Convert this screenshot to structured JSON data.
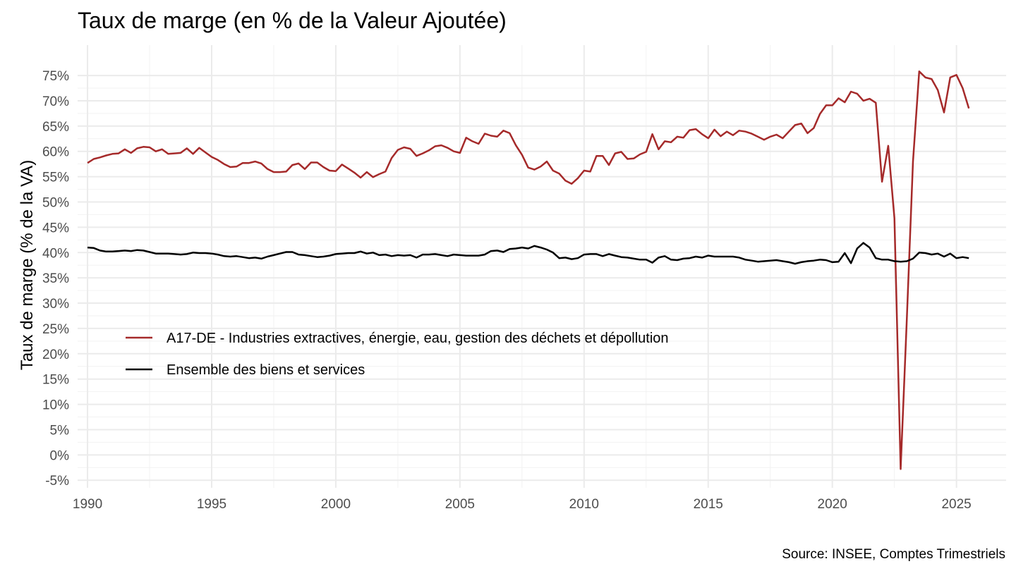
{
  "chart_data": {
    "type": "line",
    "title": "Taux de marge (en % de la Valeur Ajoutée)",
    "xlabel": "",
    "ylabel": "Taux de marge (% de la VA)",
    "caption": "Source: INSEE, Comptes Trimestriels",
    "xlim": [
      1989.6,
      2027.0
    ],
    "ylim": [
      -6.5,
      81
    ],
    "x_ticks": [
      1990,
      1995,
      2000,
      2005,
      2010,
      2015,
      2020,
      2025
    ],
    "y_ticks": [
      -5,
      0,
      5,
      10,
      15,
      20,
      25,
      30,
      35,
      40,
      45,
      50,
      55,
      60,
      65,
      70,
      75
    ],
    "y_tick_labels": [
      "-5%",
      "0%",
      "5%",
      "10%",
      "15%",
      "20%",
      "25%",
      "30%",
      "35%",
      "40%",
      "45%",
      "50%",
      "55%",
      "60%",
      "65%",
      "70%",
      "75%"
    ],
    "grid": true,
    "legend_position": "inside-bottom-left",
    "series": [
      {
        "name": "A17-DE - Industries extractives, énergie, eau, gestion des déchets et dépollution",
        "color": "#a52a2a",
        "points": [
          [
            1990.0,
            57.7
          ],
          [
            1990.25,
            58.5
          ],
          [
            1990.5,
            58.8
          ],
          [
            1990.75,
            59.2
          ],
          [
            1991.0,
            59.5
          ],
          [
            1991.25,
            59.6
          ],
          [
            1991.5,
            60.4
          ],
          [
            1991.75,
            59.7
          ],
          [
            1992.0,
            60.6
          ],
          [
            1992.25,
            60.9
          ],
          [
            1992.5,
            60.8
          ],
          [
            1992.75,
            60.0
          ],
          [
            1993.0,
            60.4
          ],
          [
            1993.25,
            59.5
          ],
          [
            1993.5,
            59.6
          ],
          [
            1993.75,
            59.7
          ],
          [
            1994.0,
            60.6
          ],
          [
            1994.25,
            59.5
          ],
          [
            1994.5,
            60.7
          ],
          [
            1994.75,
            59.8
          ],
          [
            1995.0,
            58.9
          ],
          [
            1995.25,
            58.3
          ],
          [
            1995.5,
            57.5
          ],
          [
            1995.75,
            56.9
          ],
          [
            1996.0,
            57.0
          ],
          [
            1996.25,
            57.7
          ],
          [
            1996.5,
            57.7
          ],
          [
            1996.75,
            58.0
          ],
          [
            1997.0,
            57.6
          ],
          [
            1997.25,
            56.5
          ],
          [
            1997.5,
            55.9
          ],
          [
            1997.75,
            55.9
          ],
          [
            1998.0,
            56.0
          ],
          [
            1998.25,
            57.3
          ],
          [
            1998.5,
            57.6
          ],
          [
            1998.75,
            56.5
          ],
          [
            1999.0,
            57.8
          ],
          [
            1999.25,
            57.8
          ],
          [
            1999.5,
            56.9
          ],
          [
            1999.75,
            56.2
          ],
          [
            2000.0,
            56.1
          ],
          [
            2000.25,
            57.4
          ],
          [
            2000.5,
            56.6
          ],
          [
            2000.75,
            55.8
          ],
          [
            2001.0,
            54.8
          ],
          [
            2001.25,
            55.9
          ],
          [
            2001.5,
            54.9
          ],
          [
            2001.75,
            55.5
          ],
          [
            2002.0,
            56.0
          ],
          [
            2002.25,
            58.7
          ],
          [
            2002.5,
            60.3
          ],
          [
            2002.75,
            60.8
          ],
          [
            2003.0,
            60.5
          ],
          [
            2003.25,
            59.1
          ],
          [
            2003.5,
            59.6
          ],
          [
            2003.75,
            60.2
          ],
          [
            2004.0,
            61.0
          ],
          [
            2004.25,
            61.2
          ],
          [
            2004.5,
            60.7
          ],
          [
            2004.75,
            60.0
          ],
          [
            2005.0,
            59.7
          ],
          [
            2005.25,
            62.7
          ],
          [
            2005.5,
            62.0
          ],
          [
            2005.75,
            61.5
          ],
          [
            2006.0,
            63.5
          ],
          [
            2006.25,
            63.1
          ],
          [
            2006.5,
            62.9
          ],
          [
            2006.75,
            64.1
          ],
          [
            2007.0,
            63.6
          ],
          [
            2007.25,
            61.2
          ],
          [
            2007.5,
            59.3
          ],
          [
            2007.75,
            56.8
          ],
          [
            2008.0,
            56.4
          ],
          [
            2008.25,
            57.0
          ],
          [
            2008.5,
            58.0
          ],
          [
            2008.75,
            56.2
          ],
          [
            2009.0,
            55.6
          ],
          [
            2009.25,
            54.2
          ],
          [
            2009.5,
            53.6
          ],
          [
            2009.75,
            54.7
          ],
          [
            2010.0,
            56.2
          ],
          [
            2010.25,
            56.0
          ],
          [
            2010.5,
            59.1
          ],
          [
            2010.75,
            59.1
          ],
          [
            2011.0,
            57.3
          ],
          [
            2011.25,
            59.6
          ],
          [
            2011.5,
            59.9
          ],
          [
            2011.75,
            58.5
          ],
          [
            2012.0,
            58.6
          ],
          [
            2012.25,
            59.4
          ],
          [
            2012.5,
            59.9
          ],
          [
            2012.75,
            63.4
          ],
          [
            2013.0,
            60.4
          ],
          [
            2013.25,
            62.0
          ],
          [
            2013.5,
            61.8
          ],
          [
            2013.75,
            62.9
          ],
          [
            2014.0,
            62.7
          ],
          [
            2014.25,
            64.2
          ],
          [
            2014.5,
            64.4
          ],
          [
            2014.75,
            63.4
          ],
          [
            2015.0,
            62.6
          ],
          [
            2015.25,
            64.3
          ],
          [
            2015.5,
            63.0
          ],
          [
            2015.75,
            63.9
          ],
          [
            2016.0,
            63.2
          ],
          [
            2016.25,
            64.1
          ],
          [
            2016.5,
            63.9
          ],
          [
            2016.75,
            63.5
          ],
          [
            2017.0,
            62.9
          ],
          [
            2017.25,
            62.3
          ],
          [
            2017.5,
            62.9
          ],
          [
            2017.75,
            63.3
          ],
          [
            2018.0,
            62.6
          ],
          [
            2018.25,
            63.9
          ],
          [
            2018.5,
            65.2
          ],
          [
            2018.75,
            65.5
          ],
          [
            2019.0,
            63.6
          ],
          [
            2019.25,
            64.6
          ],
          [
            2019.5,
            67.4
          ],
          [
            2019.75,
            69.1
          ],
          [
            2020.0,
            69.1
          ],
          [
            2020.25,
            70.5
          ],
          [
            2020.5,
            69.7
          ],
          [
            2020.75,
            71.8
          ],
          [
            2021.0,
            71.4
          ],
          [
            2021.25,
            70.0
          ],
          [
            2021.5,
            70.4
          ],
          [
            2021.75,
            69.6
          ],
          [
            2022.0,
            54.0
          ],
          [
            2022.25,
            61.1
          ],
          [
            2022.5,
            46.8
          ],
          [
            2022.75,
            -2.8
          ],
          [
            2023.0,
            27.0
          ],
          [
            2023.25,
            58.0
          ],
          [
            2023.5,
            75.8
          ],
          [
            2023.75,
            74.6
          ],
          [
            2024.0,
            74.3
          ],
          [
            2024.25,
            72.1
          ],
          [
            2024.5,
            67.7
          ],
          [
            2024.75,
            74.6
          ],
          [
            2025.0,
            75.1
          ],
          [
            2025.25,
            72.5
          ],
          [
            2025.5,
            68.5
          ]
        ]
      },
      {
        "name": "Ensemble des biens et services",
        "color": "#000000",
        "points": [
          [
            1990.0,
            41.0
          ],
          [
            1990.25,
            40.9
          ],
          [
            1990.5,
            40.4
          ],
          [
            1990.75,
            40.2
          ],
          [
            1991.0,
            40.2
          ],
          [
            1991.25,
            40.3
          ],
          [
            1991.5,
            40.4
          ],
          [
            1991.75,
            40.3
          ],
          [
            1992.0,
            40.5
          ],
          [
            1992.25,
            40.4
          ],
          [
            1992.5,
            40.1
          ],
          [
            1992.75,
            39.8
          ],
          [
            1993.0,
            39.8
          ],
          [
            1993.25,
            39.8
          ],
          [
            1993.5,
            39.7
          ],
          [
            1993.75,
            39.6
          ],
          [
            1994.0,
            39.7
          ],
          [
            1994.25,
            40.0
          ],
          [
            1994.5,
            39.9
          ],
          [
            1994.75,
            39.9
          ],
          [
            1995.0,
            39.8
          ],
          [
            1995.25,
            39.6
          ],
          [
            1995.5,
            39.3
          ],
          [
            1995.75,
            39.2
          ],
          [
            1996.0,
            39.3
          ],
          [
            1996.25,
            39.1
          ],
          [
            1996.5,
            38.9
          ],
          [
            1996.75,
            39.0
          ],
          [
            1997.0,
            38.8
          ],
          [
            1997.25,
            39.2
          ],
          [
            1997.5,
            39.5
          ],
          [
            1997.75,
            39.8
          ],
          [
            1998.0,
            40.1
          ],
          [
            1998.25,
            40.1
          ],
          [
            1998.5,
            39.6
          ],
          [
            1998.75,
            39.5
          ],
          [
            1999.0,
            39.3
          ],
          [
            1999.25,
            39.1
          ],
          [
            1999.5,
            39.2
          ],
          [
            1999.75,
            39.4
          ],
          [
            2000.0,
            39.7
          ],
          [
            2000.25,
            39.8
          ],
          [
            2000.5,
            39.9
          ],
          [
            2000.75,
            39.9
          ],
          [
            2001.0,
            40.2
          ],
          [
            2001.25,
            39.8
          ],
          [
            2001.5,
            40.0
          ],
          [
            2001.75,
            39.5
          ],
          [
            2002.0,
            39.6
          ],
          [
            2002.25,
            39.3
          ],
          [
            2002.5,
            39.5
          ],
          [
            2002.75,
            39.4
          ],
          [
            2003.0,
            39.5
          ],
          [
            2003.25,
            39.0
          ],
          [
            2003.5,
            39.6
          ],
          [
            2003.75,
            39.6
          ],
          [
            2004.0,
            39.7
          ],
          [
            2004.25,
            39.5
          ],
          [
            2004.5,
            39.3
          ],
          [
            2004.75,
            39.6
          ],
          [
            2005.0,
            39.5
          ],
          [
            2005.25,
            39.4
          ],
          [
            2005.5,
            39.4
          ],
          [
            2005.75,
            39.4
          ],
          [
            2006.0,
            39.6
          ],
          [
            2006.25,
            40.3
          ],
          [
            2006.5,
            40.4
          ],
          [
            2006.75,
            40.1
          ],
          [
            2007.0,
            40.7
          ],
          [
            2007.25,
            40.8
          ],
          [
            2007.5,
            41.0
          ],
          [
            2007.75,
            40.8
          ],
          [
            2008.0,
            41.3
          ],
          [
            2008.25,
            41.0
          ],
          [
            2008.5,
            40.6
          ],
          [
            2008.75,
            40.0
          ],
          [
            2009.0,
            38.9
          ],
          [
            2009.25,
            39.0
          ],
          [
            2009.5,
            38.7
          ],
          [
            2009.75,
            38.9
          ],
          [
            2010.0,
            39.6
          ],
          [
            2010.25,
            39.7
          ],
          [
            2010.5,
            39.7
          ],
          [
            2010.75,
            39.3
          ],
          [
            2011.0,
            39.7
          ],
          [
            2011.25,
            39.4
          ],
          [
            2011.5,
            39.1
          ],
          [
            2011.75,
            39.0
          ],
          [
            2012.0,
            38.8
          ],
          [
            2012.25,
            38.6
          ],
          [
            2012.5,
            38.6
          ],
          [
            2012.75,
            38.0
          ],
          [
            2013.0,
            39.0
          ],
          [
            2013.25,
            39.3
          ],
          [
            2013.5,
            38.6
          ],
          [
            2013.75,
            38.5
          ],
          [
            2014.0,
            38.8
          ],
          [
            2014.25,
            38.9
          ],
          [
            2014.5,
            39.2
          ],
          [
            2014.75,
            39.0
          ],
          [
            2015.0,
            39.4
          ],
          [
            2015.25,
            39.2
          ],
          [
            2015.5,
            39.2
          ],
          [
            2015.75,
            39.2
          ],
          [
            2016.0,
            39.2
          ],
          [
            2016.25,
            39.0
          ],
          [
            2016.5,
            38.6
          ],
          [
            2016.75,
            38.4
          ],
          [
            2017.0,
            38.2
          ],
          [
            2017.25,
            38.3
          ],
          [
            2017.5,
            38.4
          ],
          [
            2017.75,
            38.5
          ],
          [
            2018.0,
            38.3
          ],
          [
            2018.25,
            38.1
          ],
          [
            2018.5,
            37.8
          ],
          [
            2018.75,
            38.1
          ],
          [
            2019.0,
            38.3
          ],
          [
            2019.25,
            38.4
          ],
          [
            2019.5,
            38.6
          ],
          [
            2019.75,
            38.5
          ],
          [
            2020.0,
            38.1
          ],
          [
            2020.25,
            38.2
          ],
          [
            2020.5,
            39.9
          ],
          [
            2020.75,
            37.9
          ],
          [
            2021.0,
            40.8
          ],
          [
            2021.25,
            41.9
          ],
          [
            2021.5,
            41.0
          ],
          [
            2021.75,
            38.9
          ],
          [
            2022.0,
            38.6
          ],
          [
            2022.25,
            38.6
          ],
          [
            2022.5,
            38.3
          ],
          [
            2022.75,
            38.2
          ],
          [
            2023.0,
            38.3
          ],
          [
            2023.25,
            38.8
          ],
          [
            2023.5,
            40.0
          ],
          [
            2023.75,
            39.9
          ],
          [
            2024.0,
            39.6
          ],
          [
            2024.25,
            39.8
          ],
          [
            2024.5,
            39.2
          ],
          [
            2024.75,
            39.8
          ],
          [
            2025.0,
            38.9
          ],
          [
            2025.25,
            39.1
          ],
          [
            2025.5,
            38.9
          ]
        ]
      }
    ]
  }
}
